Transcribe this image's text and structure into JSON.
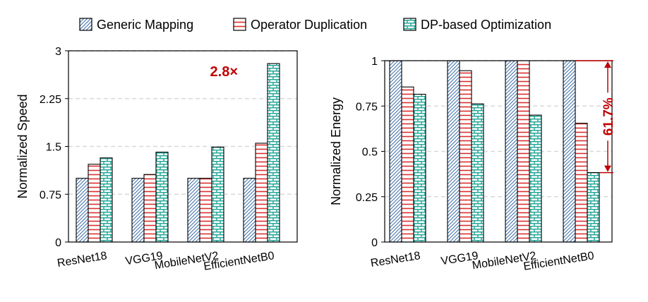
{
  "legend": {
    "items": [
      {
        "label": "Generic Mapping",
        "pattern": "hatch",
        "color": "#3d6fa8"
      },
      {
        "label": "Operator Duplication",
        "pattern": "stripes",
        "color": "#d93030"
      },
      {
        "label": "DP-based Optimization",
        "pattern": "bricks",
        "color": "#27a89a"
      }
    ]
  },
  "chart_data": [
    {
      "type": "bar",
      "categories": [
        "ResNet18",
        "VGG19",
        "MobileNetV2",
        "EfficientNetB0"
      ],
      "series": [
        {
          "name": "Generic Mapping",
          "values": [
            1.0,
            1.0,
            1.0,
            1.0
          ]
        },
        {
          "name": "Operator Duplication",
          "values": [
            1.22,
            1.06,
            1.0,
            1.55
          ]
        },
        {
          "name": "DP-based Optimization",
          "values": [
            1.32,
            1.41,
            1.49,
            2.8
          ]
        }
      ],
      "xlabel": "",
      "ylabel": "Normalized Speed",
      "ylim": [
        0,
        3
      ],
      "yticks": [
        "0",
        "0.75",
        "1.5",
        "2.25",
        "3"
      ],
      "grid": true,
      "annotation": {
        "text": "2.8×",
        "color": "#c00000"
      }
    },
    {
      "type": "bar",
      "categories": [
        "ResNet18",
        "VGG19",
        "MobileNetV2",
        "EfficientNetB0"
      ],
      "series": [
        {
          "name": "Generic Mapping",
          "values": [
            1.0,
            1.0,
            1.0,
            1.0
          ]
        },
        {
          "name": "Operator Duplication",
          "values": [
            0.855,
            0.945,
            1.0,
            0.655
          ]
        },
        {
          "name": "DP-based Optimization",
          "values": [
            0.815,
            0.762,
            0.7,
            0.383
          ]
        }
      ],
      "xlabel": "",
      "ylabel": "Normalized Energy",
      "ylim": [
        0,
        1
      ],
      "yticks": [
        "0",
        "0.25",
        "0.5",
        "0.75",
        "1"
      ],
      "grid": true,
      "annotation": {
        "text": "61.7%",
        "color": "#c00000"
      }
    }
  ]
}
